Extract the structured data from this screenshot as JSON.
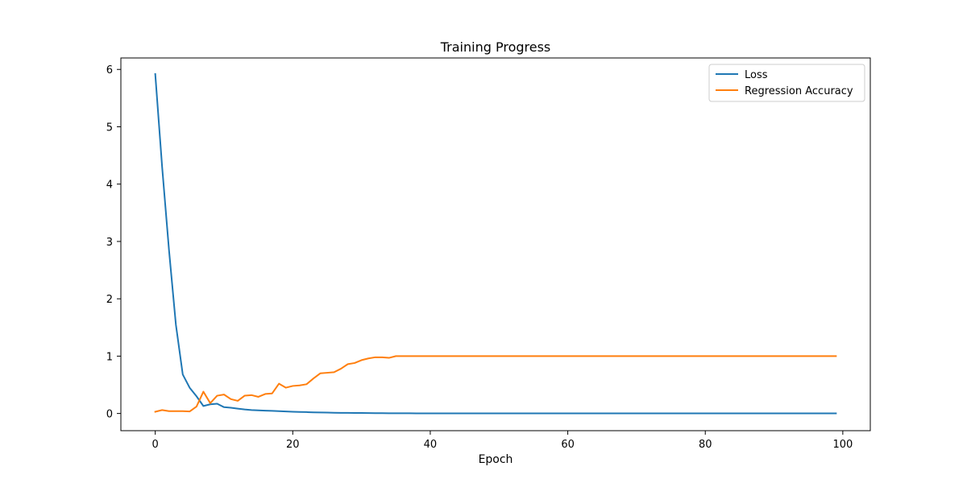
{
  "chart_data": {
    "type": "line",
    "title": "Training Progress",
    "xlabel": "Epoch",
    "ylabel": "",
    "xlim": [
      -5,
      104
    ],
    "ylim": [
      -0.3,
      6.2
    ],
    "xticks": [
      0,
      20,
      40,
      60,
      80,
      100
    ],
    "yticks": [
      0,
      1,
      2,
      3,
      4,
      5,
      6
    ],
    "grid": false,
    "legend_position": "top-right",
    "series": [
      {
        "name": "Loss",
        "color": "#1f77b4",
        "x": [
          0,
          1,
          2,
          3,
          4,
          5,
          6,
          7,
          8,
          9,
          10,
          11,
          12,
          13,
          14,
          15,
          16,
          17,
          18,
          19,
          20,
          21,
          22,
          23,
          24,
          25,
          26,
          27,
          28,
          29,
          30,
          31,
          32,
          33,
          34,
          35,
          36,
          37,
          38,
          39,
          40,
          41,
          42,
          43,
          44,
          45,
          46,
          47,
          48,
          49,
          50,
          51,
          52,
          53,
          54,
          55,
          56,
          57,
          58,
          59,
          60,
          61,
          62,
          63,
          64,
          65,
          66,
          67,
          68,
          69,
          70,
          71,
          72,
          73,
          74,
          75,
          76,
          77,
          78,
          79,
          80,
          81,
          82,
          83,
          84,
          85,
          86,
          87,
          88,
          89,
          90,
          91,
          92,
          93,
          94,
          95,
          96,
          97,
          98,
          99
        ],
        "values": [
          5.92,
          4.3,
          2.85,
          1.55,
          0.68,
          0.45,
          0.3,
          0.13,
          0.16,
          0.17,
          0.11,
          0.1,
          0.085,
          0.07,
          0.06,
          0.055,
          0.05,
          0.045,
          0.04,
          0.035,
          0.03,
          0.027,
          0.024,
          0.02,
          0.017,
          0.015,
          0.013,
          0.011,
          0.01,
          0.009,
          0.008,
          0.007,
          0.006,
          0.005,
          0.004,
          0.004,
          0.003,
          0.003,
          0.002,
          0.002,
          0.002,
          0.002,
          0.001,
          0.001,
          0.001,
          0.001,
          0.001,
          0.001,
          0.001,
          0.001,
          0.001,
          0.001,
          0.001,
          0.001,
          0.001,
          0.001,
          0.001,
          0.001,
          0.001,
          0.001,
          0.001,
          0.001,
          0.001,
          0.001,
          0.001,
          0.001,
          0.001,
          0.001,
          0.001,
          0.001,
          0.001,
          0.001,
          0.001,
          0.001,
          0.001,
          0.001,
          0.001,
          0.001,
          0.001,
          0.001,
          0.001,
          0.001,
          0.001,
          0.001,
          0.001,
          0.001,
          0.001,
          0.001,
          0.001,
          0.001,
          0.001,
          0.001,
          0.001,
          0.001,
          0.001,
          0.001,
          0.001,
          0.001,
          0.001,
          0.001
        ]
      },
      {
        "name": "Regression Accuracy",
        "color": "#ff7f0e",
        "x": [
          0,
          1,
          2,
          3,
          4,
          5,
          6,
          7,
          8,
          9,
          10,
          11,
          12,
          13,
          14,
          15,
          16,
          17,
          18,
          19,
          20,
          21,
          22,
          23,
          24,
          25,
          26,
          27,
          28,
          29,
          30,
          31,
          32,
          33,
          34,
          35,
          36,
          37,
          38,
          39,
          40,
          41,
          42,
          43,
          44,
          45,
          46,
          47,
          48,
          49,
          50,
          51,
          52,
          53,
          54,
          55,
          56,
          57,
          58,
          59,
          60,
          61,
          62,
          63,
          64,
          65,
          66,
          67,
          68,
          69,
          70,
          71,
          72,
          73,
          74,
          75,
          76,
          77,
          78,
          79,
          80,
          81,
          82,
          83,
          84,
          85,
          86,
          87,
          88,
          89,
          90,
          91,
          92,
          93,
          94,
          95,
          96,
          97,
          98,
          99
        ],
        "values": [
          0.03,
          0.06,
          0.04,
          0.04,
          0.04,
          0.035,
          0.12,
          0.38,
          0.18,
          0.31,
          0.33,
          0.25,
          0.22,
          0.31,
          0.32,
          0.29,
          0.34,
          0.35,
          0.52,
          0.45,
          0.48,
          0.49,
          0.51,
          0.61,
          0.7,
          0.71,
          0.72,
          0.78,
          0.86,
          0.88,
          0.93,
          0.96,
          0.98,
          0.98,
          0.97,
          1.0,
          1.0,
          1.0,
          1.0,
          1.0,
          1.0,
          1.0,
          1.0,
          1.0,
          1.0,
          1.0,
          1.0,
          1.0,
          1.0,
          1.0,
          1.0,
          1.0,
          1.0,
          1.0,
          1.0,
          1.0,
          1.0,
          1.0,
          1.0,
          1.0,
          1.0,
          1.0,
          1.0,
          1.0,
          1.0,
          1.0,
          1.0,
          1.0,
          1.0,
          1.0,
          1.0,
          1.0,
          1.0,
          1.0,
          1.0,
          1.0,
          1.0,
          1.0,
          1.0,
          1.0,
          1.0,
          1.0,
          1.0,
          1.0,
          1.0,
          1.0,
          1.0,
          1.0,
          1.0,
          1.0,
          1.0,
          1.0,
          1.0,
          1.0,
          1.0,
          1.0,
          1.0,
          1.0,
          1.0,
          1.0
        ]
      }
    ]
  }
}
